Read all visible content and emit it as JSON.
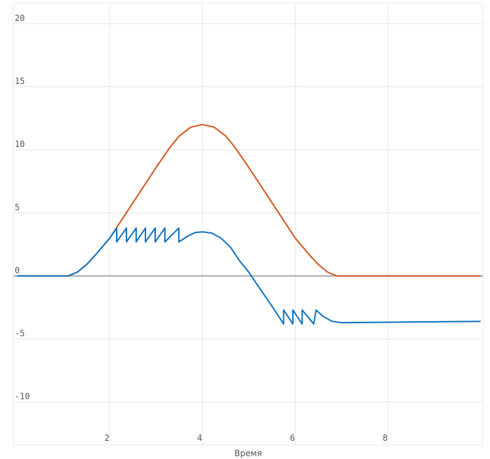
{
  "chart_data": {
    "type": "line",
    "x_label": "Время",
    "xlim": [
      -0.08,
      10.05
    ],
    "xticks": [
      2,
      4,
      6,
      8
    ],
    "ylim": [
      -13.4,
      21.6
    ],
    "yticks": [
      -10,
      -5,
      0,
      5,
      10,
      15,
      20
    ],
    "grid": true,
    "zero_line": true,
    "series": [
      {
        "color": "#d0561f",
        "x": [
          0,
          1,
          1.1,
          1.3,
          1.5,
          1.7,
          2,
          2.5,
          3,
          3.3,
          3.5,
          3.75,
          4,
          4.25,
          4.5,
          4.7,
          5,
          5.5,
          6,
          6.3,
          6.5,
          6.7,
          6.9,
          7,
          8,
          10
        ],
        "values": [
          0,
          0,
          0,
          0.3,
          0.9,
          1.7,
          3,
          5.8,
          8.6,
          10.2,
          11.1,
          11.8,
          12,
          11.8,
          11.1,
          10.2,
          8.6,
          5.8,
          3,
          1.7,
          0.9,
          0.3,
          0,
          0,
          0,
          0
        ]
      },
      {
        "color": "#0d72c2",
        "x": [
          0,
          1,
          1.1,
          1.3,
          1.5,
          1.7,
          2,
          2.15,
          2.15,
          2.36,
          2.36,
          2.57,
          2.57,
          2.77,
          2.77,
          2.98,
          2.98,
          3.19,
          3.19,
          3.49,
          3.49,
          3.7,
          3.85,
          4,
          4.2,
          4.4,
          4.6,
          4.8,
          5,
          5.2,
          5.5,
          5.75,
          5.75,
          5.95,
          5.95,
          6.15,
          6.15,
          6.4,
          6.45,
          6.6,
          6.8,
          7,
          10
        ],
        "values": [
          0,
          0,
          0,
          0.3,
          0.9,
          1.7,
          3,
          3.8,
          2.7,
          3.8,
          2.7,
          3.8,
          2.7,
          3.8,
          2.7,
          3.8,
          2.7,
          3.8,
          2.7,
          3.8,
          2.7,
          3.2,
          3.45,
          3.5,
          3.4,
          3.0,
          2.3,
          1.2,
          0.3,
          -0.8,
          -2.4,
          -3.8,
          -2.7,
          -3.8,
          -2.7,
          -3.8,
          -2.7,
          -3.8,
          -2.7,
          -3.2,
          -3.6,
          -3.7,
          -3.6
        ]
      }
    ]
  }
}
